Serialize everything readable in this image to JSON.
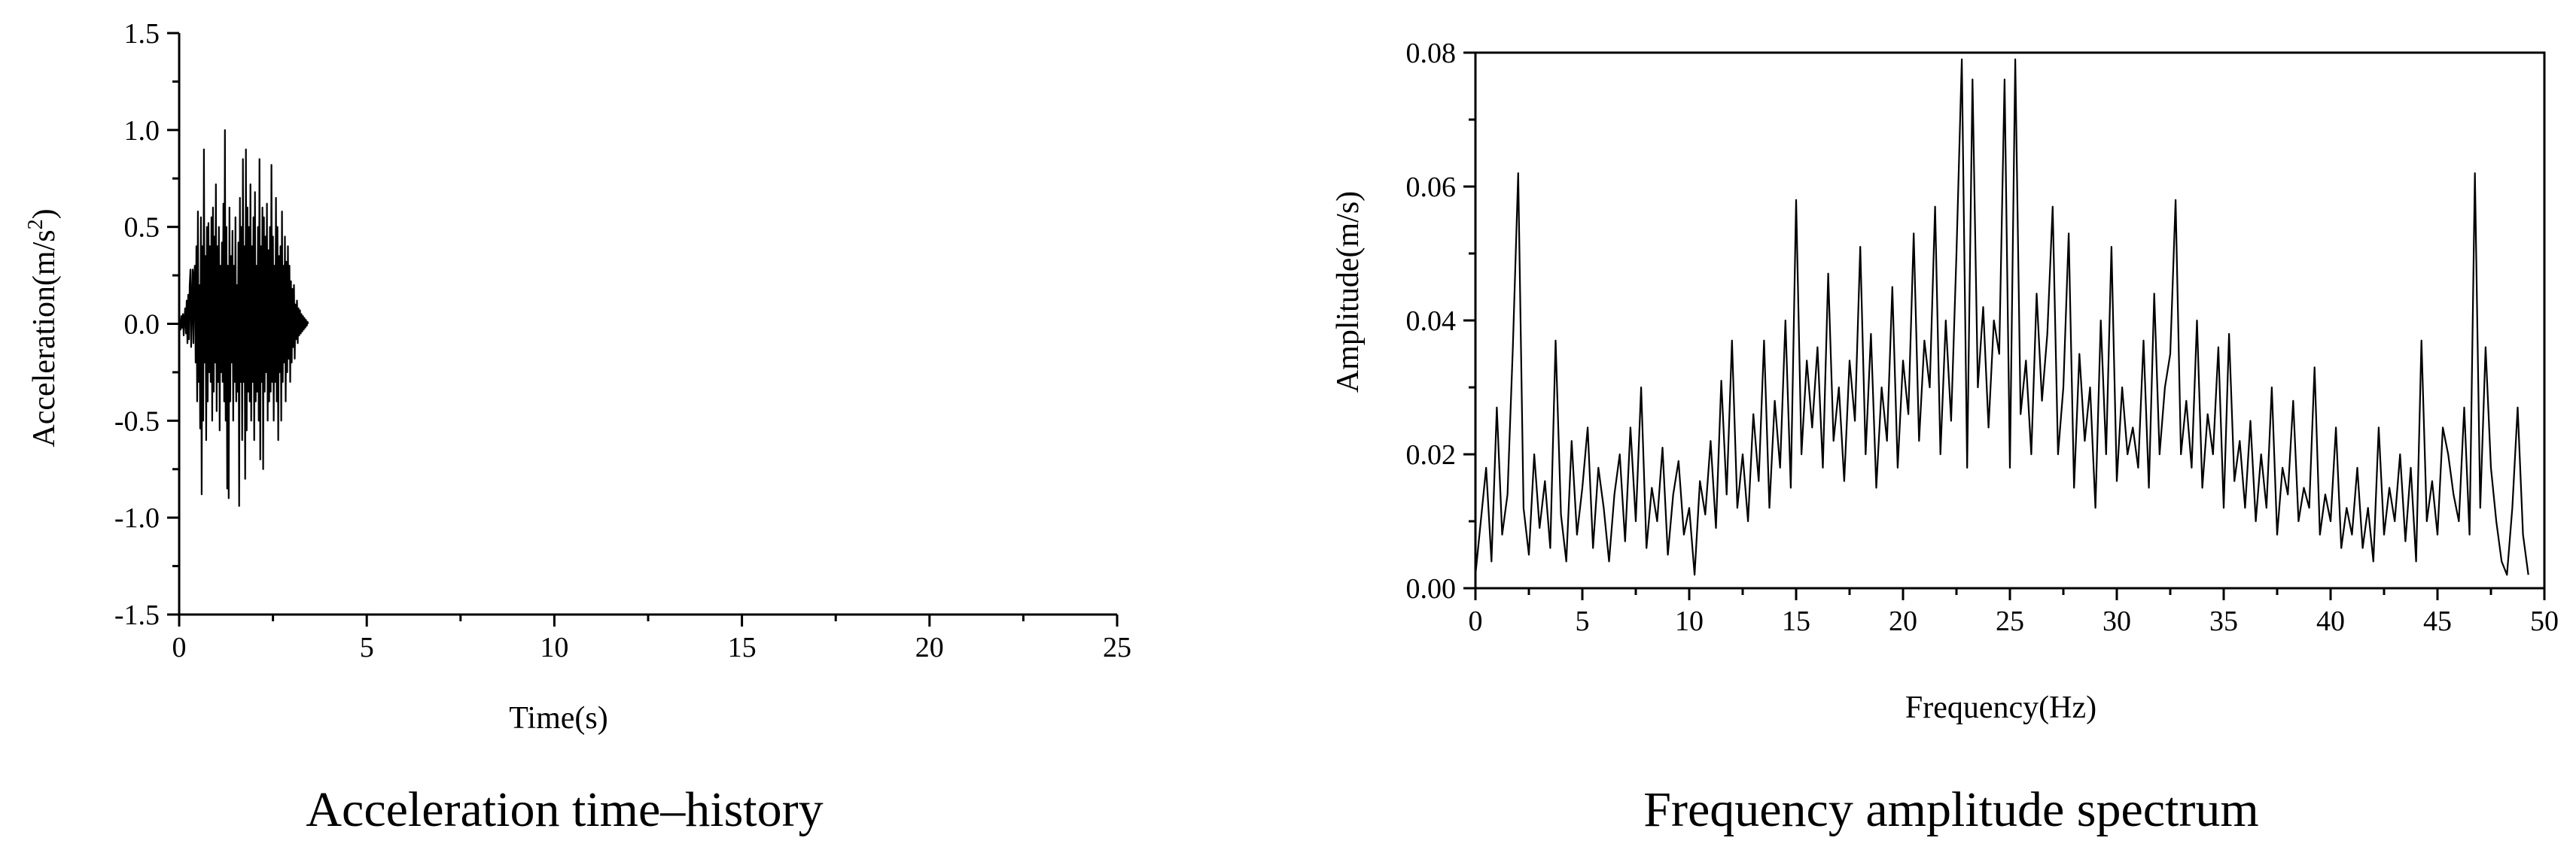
{
  "chart_data": [
    {
      "type": "line",
      "title": "Acceleration time–history",
      "xlabel": "Time(s)",
      "ylabel": "Acceleration(m/s²)",
      "ylabel_base": "Acceleration(m/s",
      "ylabel_sup": "2",
      "ylabel_close": ")",
      "xlim": [
        0,
        25
      ],
      "ylim": [
        -1.5,
        1.5
      ],
      "xticks": [
        0,
        5,
        10,
        15,
        20,
        25
      ],
      "xtick_labels": [
        "0",
        "5",
        "10",
        "15",
        "20",
        "25"
      ],
      "yticks": [
        -1.5,
        -1.0,
        -0.5,
        0.0,
        0.5,
        1.0,
        1.5
      ],
      "ytick_labels": [
        "-1.5",
        "-1.0",
        "-0.5",
        "0.0",
        "0.5",
        "1.0",
        "1.5"
      ],
      "grid": false,
      "series": [
        {
          "name": "acceleration",
          "dt": 0.02,
          "values": [
            0.0,
            0.02,
            -0.03,
            0.04,
            -0.02,
            0.05,
            -0.06,
            0.03,
            0.08,
            -0.05,
            0.12,
            -0.1,
            0.15,
            -0.08,
            0.2,
            0.28,
            -0.12,
            0.1,
            0.28,
            -0.1,
            0.25,
            0.3,
            -0.2,
            0.4,
            -0.4,
            0.58,
            -0.3,
            0.2,
            -0.54,
            0.55,
            -0.88,
            0.4,
            -0.5,
            0.9,
            -0.2,
            0.35,
            -0.6,
            0.5,
            -0.4,
            0.52,
            -0.25,
            0.4,
            -0.3,
            0.55,
            -0.5,
            0.6,
            -0.35,
            0.45,
            -0.2,
            0.72,
            -0.45,
            0.4,
            -0.3,
            0.5,
            -0.55,
            0.3,
            -0.25,
            0.42,
            -0.3,
            0.62,
            -0.4,
            1.0,
            -0.5,
            0.5,
            -0.85,
            0.3,
            -0.9,
            0.6,
            -0.4,
            0.35,
            -0.2,
            0.48,
            -0.5,
            0.3,
            -0.3,
            0.55,
            -0.4,
            0.2,
            -0.35,
            0.42,
            -0.94,
            0.65,
            -0.3,
            0.5,
            -0.6,
            0.85,
            -0.3,
            0.4,
            -0.8,
            0.9,
            -0.55,
            0.6,
            -0.35,
            0.5,
            -0.4,
            0.72,
            -0.5,
            0.4,
            -0.3,
            0.55,
            -0.6,
            0.68,
            -0.4,
            0.3,
            -0.35,
            0.5,
            -0.5,
            0.85,
            -0.7,
            0.4,
            -0.3,
            0.6,
            -0.75,
            0.55,
            -0.35,
            0.45,
            -0.25,
            0.62,
            -0.5,
            0.38,
            -0.4,
            0.5,
            -0.35,
            0.82,
            -0.3,
            0.45,
            -0.5,
            0.3,
            -0.3,
            0.65,
            -0.4,
            0.5,
            -0.6,
            0.35,
            -0.25,
            0.4,
            -0.5,
            0.58,
            -0.3,
            0.3,
            -0.2,
            0.45,
            -0.4,
            0.32,
            -0.25,
            0.4,
            -0.18,
            0.3,
            -0.3,
            0.22,
            -0.2,
            0.18,
            -0.12,
            0.2,
            -0.18,
            0.1,
            -0.08,
            0.12,
            -0.1,
            0.08,
            -0.06,
            0.07,
            -0.05,
            0.05,
            -0.04,
            0.04,
            -0.03,
            0.03,
            -0.02,
            0.02,
            -0.01,
            0.01,
            0.0
          ]
        }
      ]
    },
    {
      "type": "line",
      "title": "Frequency amplitude spectrum",
      "xlabel": "Frequency(Hz)",
      "ylabel": "Amplitude(m/s)",
      "xlim": [
        0,
        50
      ],
      "ylim": [
        0,
        0.08
      ],
      "xticks": [
        0,
        5,
        10,
        15,
        20,
        25,
        30,
        35,
        40,
        45,
        50
      ],
      "xtick_labels": [
        "0",
        "5",
        "10",
        "15",
        "20",
        "25",
        "30",
        "35",
        "40",
        "45",
        "50"
      ],
      "yticks": [
        0.0,
        0.02,
        0.04,
        0.06,
        0.08
      ],
      "ytick_labels": [
        "0.00",
        "0.02",
        "0.04",
        "0.06",
        "0.08"
      ],
      "grid": false,
      "series": [
        {
          "name": "amplitude",
          "df": 0.25,
          "values": [
            0.002,
            0.01,
            0.018,
            0.004,
            0.027,
            0.008,
            0.014,
            0.036,
            0.062,
            0.012,
            0.005,
            0.02,
            0.009,
            0.016,
            0.006,
            0.037,
            0.011,
            0.004,
            0.022,
            0.008,
            0.015,
            0.024,
            0.006,
            0.018,
            0.012,
            0.004,
            0.014,
            0.02,
            0.007,
            0.024,
            0.01,
            0.03,
            0.006,
            0.015,
            0.01,
            0.021,
            0.005,
            0.014,
            0.019,
            0.008,
            0.012,
            0.002,
            0.016,
            0.011,
            0.022,
            0.009,
            0.031,
            0.014,
            0.037,
            0.012,
            0.02,
            0.01,
            0.026,
            0.016,
            0.037,
            0.012,
            0.028,
            0.018,
            0.04,
            0.015,
            0.058,
            0.02,
            0.034,
            0.024,
            0.036,
            0.018,
            0.047,
            0.022,
            0.03,
            0.016,
            0.034,
            0.025,
            0.051,
            0.02,
            0.038,
            0.015,
            0.03,
            0.022,
            0.045,
            0.018,
            0.034,
            0.026,
            0.053,
            0.022,
            0.037,
            0.03,
            0.057,
            0.02,
            0.04,
            0.025,
            0.05,
            0.079,
            0.018,
            0.076,
            0.03,
            0.042,
            0.024,
            0.04,
            0.035,
            0.076,
            0.018,
            0.079,
            0.026,
            0.034,
            0.02,
            0.044,
            0.028,
            0.038,
            0.057,
            0.02,
            0.03,
            0.053,
            0.015,
            0.035,
            0.022,
            0.03,
            0.012,
            0.04,
            0.02,
            0.051,
            0.016,
            0.03,
            0.02,
            0.024,
            0.018,
            0.037,
            0.015,
            0.044,
            0.02,
            0.03,
            0.035,
            0.058,
            0.02,
            0.028,
            0.018,
            0.04,
            0.015,
            0.026,
            0.02,
            0.036,
            0.012,
            0.038,
            0.016,
            0.022,
            0.012,
            0.025,
            0.01,
            0.02,
            0.012,
            0.03,
            0.008,
            0.018,
            0.014,
            0.028,
            0.01,
            0.015,
            0.012,
            0.033,
            0.008,
            0.014,
            0.01,
            0.024,
            0.006,
            0.012,
            0.008,
            0.018,
            0.006,
            0.012,
            0.004,
            0.024,
            0.008,
            0.015,
            0.01,
            0.02,
            0.007,
            0.018,
            0.004,
            0.037,
            0.01,
            0.016,
            0.008,
            0.024,
            0.02,
            0.014,
            0.01,
            0.027,
            0.008,
            0.062,
            0.012,
            0.036,
            0.018,
            0.01,
            0.004,
            0.002,
            0.012,
            0.027,
            0.008,
            0.002
          ]
        }
      ]
    }
  ]
}
